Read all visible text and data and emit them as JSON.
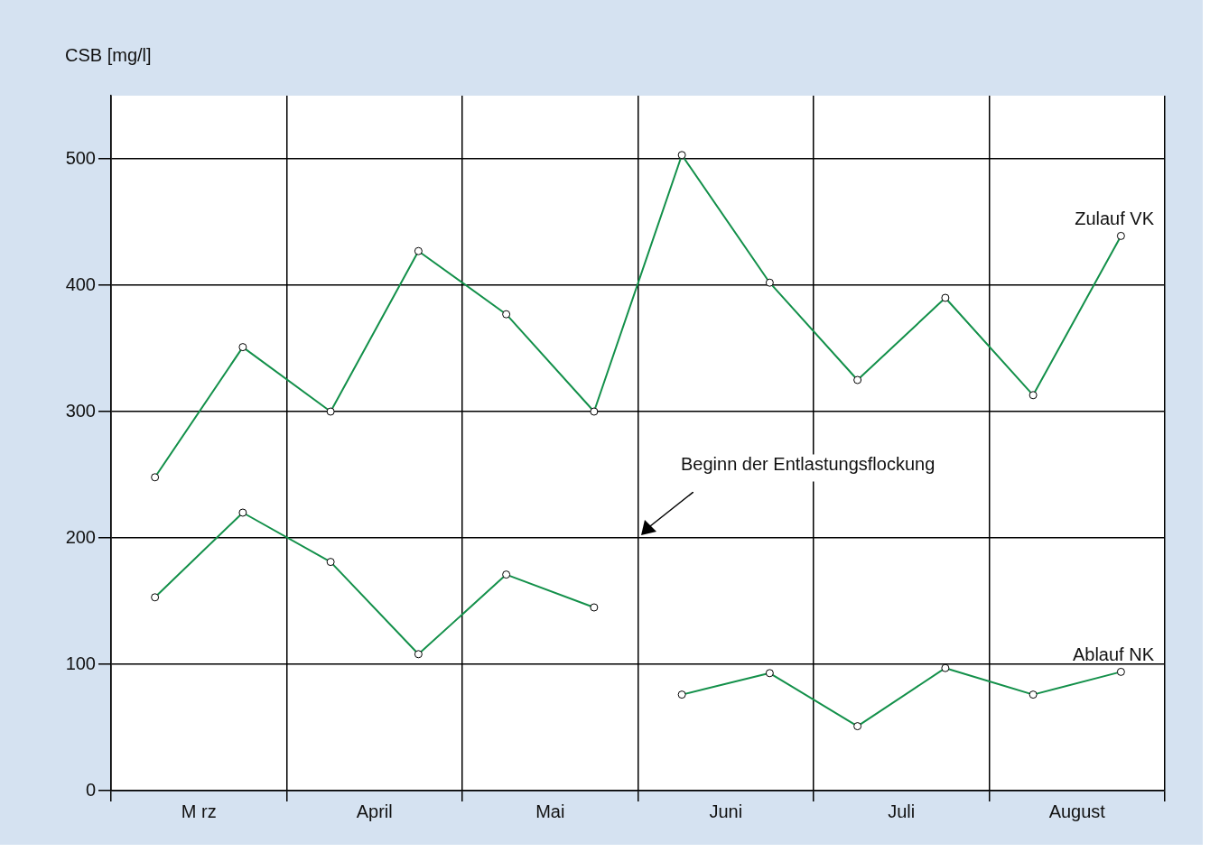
{
  "chart_data": {
    "type": "line",
    "ylabel": "CSB [mg/l]",
    "categories": [
      null,
      null,
      "M rz",
      null,
      null,
      null,
      "April",
      null,
      null,
      null,
      "Mai",
      null,
      null,
      null,
      "Juni",
      null,
      null,
      null,
      "Juli",
      null,
      null,
      null,
      "August",
      null,
      null
    ],
    "ylim": [
      0,
      550
    ],
    "yticks": [
      0,
      100,
      200,
      300,
      400,
      500
    ],
    "grid": true,
    "legend": false,
    "marker": "circle",
    "line_style": "solid",
    "series": [
      {
        "name": "Zulauf VK",
        "color": "#13904a",
        "values": [
          null,
          248,
          null,
          351,
          null,
          300,
          null,
          427,
          null,
          377,
          null,
          300,
          null,
          503,
          null,
          402,
          null,
          325,
          null,
          390,
          null,
          313,
          null,
          439,
          null
        ]
      },
      {
        "color": "#13904a",
        "values": [
          null,
          153,
          null,
          220,
          null,
          181,
          null,
          108,
          null,
          171,
          null,
          145,
          null,
          null,
          null,
          null,
          null,
          null,
          null,
          null,
          null,
          null,
          null,
          null,
          null
        ]
      },
      {
        "name": "Ablauf NK",
        "color": "#13904a",
        "values": [
          null,
          null,
          null,
          null,
          null,
          null,
          null,
          null,
          null,
          null,
          null,
          null,
          null,
          76,
          null,
          93,
          null,
          51,
          null,
          97,
          null,
          76,
          null,
          94,
          null
        ]
      }
    ],
    "annotations": [
      "Beginn der Entlastungsflockung"
    ]
  }
}
